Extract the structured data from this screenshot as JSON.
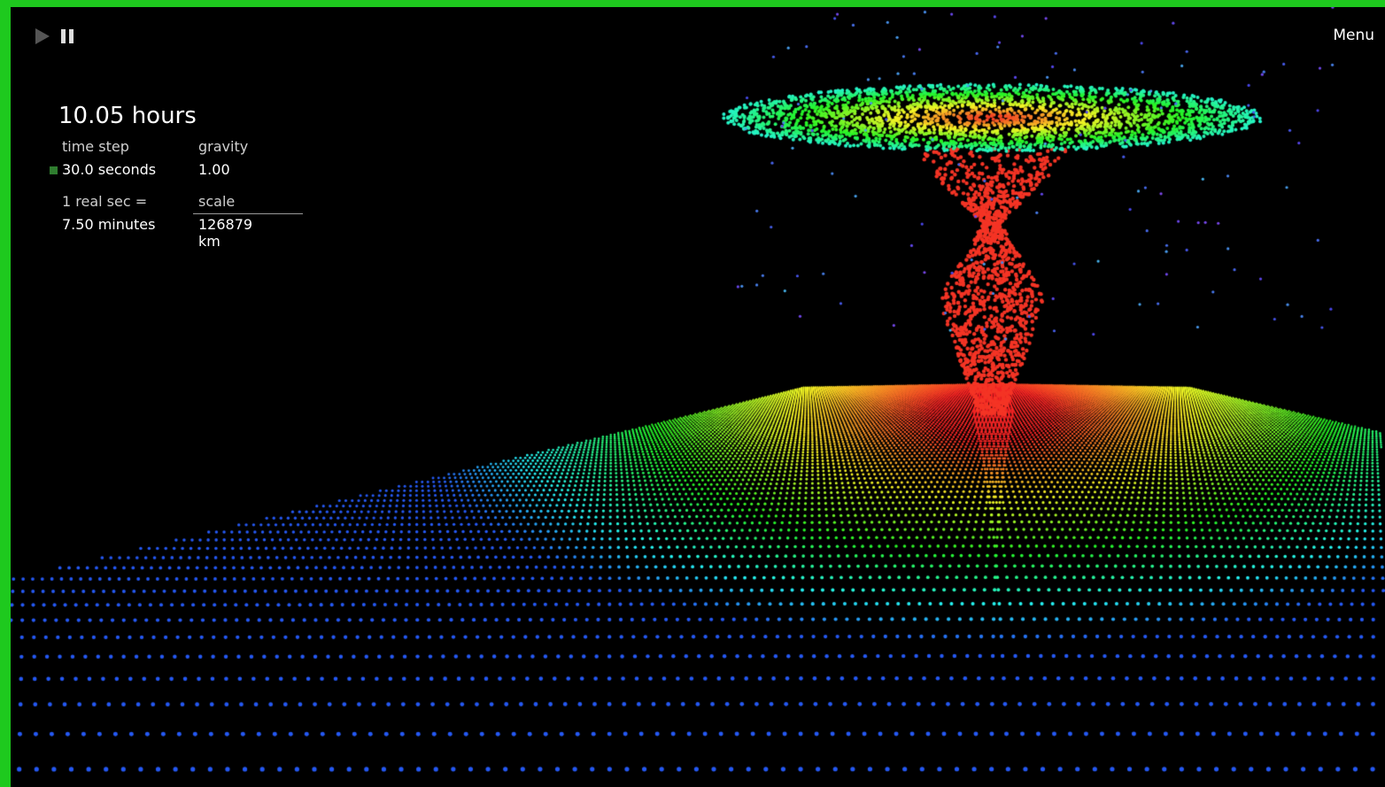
{
  "app": {
    "colors": {
      "frame_border": "#1ec91e",
      "background": "#000000",
      "hud_text": "#ffffff",
      "step_indicator": "#2f7d2f"
    }
  },
  "controls": {
    "play_icon": "play-icon",
    "pause_icon": "pause-icon",
    "menu_label": "Menu"
  },
  "hud": {
    "elapsed": "10.05 hours",
    "time_step_label": "time step",
    "time_step_value": "30.0 seconds",
    "gravity_label": "gravity",
    "gravity_value": "1.00",
    "real_sec_label": "1 real sec =",
    "real_sec_value": "7.50 minutes",
    "scale_label": "scale",
    "scale_value": "126879 km"
  }
}
